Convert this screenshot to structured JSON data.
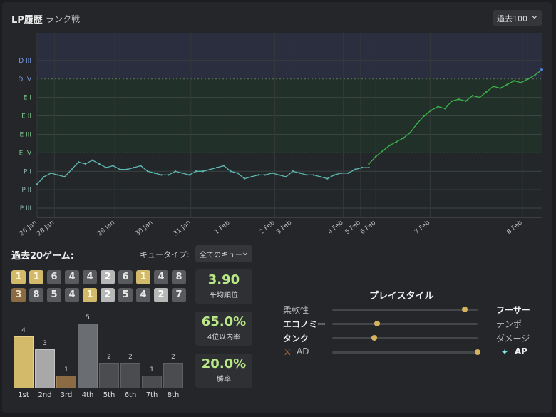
{
  "header": {
    "title": "LP履歴",
    "subtitle": "ランク戦",
    "range_label": "過去100"
  },
  "colors": {
    "line_green": "#3cb34a",
    "line_teal": "#5fb8b2",
    "line_blue": "#4d7fd8",
    "diamond_band": "#2a2e3f",
    "emerald_band": "#22302a",
    "stat_value": "#b8e986"
  },
  "chart_data": {
    "type": "line",
    "y_ticks": [
      "P III",
      "P II",
      "P I",
      "E IV",
      "E III",
      "E II",
      "E I",
      "D IV",
      "D III"
    ],
    "x_ticks": [
      {
        "label": "26 Jan",
        "x": 0
      },
      {
        "label": "28 Jan",
        "x": 5
      },
      {
        "label": "29 Jan",
        "x": 22.5
      },
      {
        "label": "30 Jan",
        "x": 33.5
      },
      {
        "label": "31 Jan",
        "x": 44.5
      },
      {
        "label": "1 Feb",
        "x": 55.8
      },
      {
        "label": "2 Feb",
        "x": 68.8
      },
      {
        "label": "3 Feb",
        "x": 73.7
      },
      {
        "label": "4 Feb",
        "x": 88.6
      },
      {
        "label": "5 Feb",
        "x": 93.6
      },
      {
        "label": "6 Feb",
        "x": 98
      },
      {
        "label": "7 Feb",
        "x": 113.7
      },
      {
        "label": "8 Feb",
        "x": 140.4
      }
    ],
    "ylim": [
      -0.5,
      9.5
    ],
    "xlim": [
      0,
      146
    ],
    "series": [
      {
        "x": [
          0,
          2,
          4,
          6,
          8,
          10,
          12,
          14,
          16,
          18,
          20,
          22,
          24,
          26,
          28,
          30,
          32,
          34,
          36,
          38,
          40,
          42,
          44,
          46,
          48,
          50,
          52,
          54,
          56,
          58,
          60,
          62,
          64,
          66,
          68,
          70,
          72,
          74,
          76,
          78,
          80,
          82,
          84,
          86,
          88,
          90,
          92,
          94,
          96
        ],
        "y": [
          1.3,
          1.7,
          1.9,
          1.8,
          1.7,
          2.1,
          2.5,
          2.4,
          2.6,
          2.4,
          2.2,
          2.3,
          2.1,
          2.1,
          2.2,
          2.3,
          2.0,
          1.9,
          1.8,
          1.8,
          2.0,
          1.9,
          1.8,
          2.0,
          2.0,
          2.1,
          2.2,
          2.3,
          2.0,
          1.9,
          1.6,
          1.7,
          1.8,
          1.8,
          1.9,
          1.8,
          1.7,
          2.0,
          1.9,
          1.8,
          1.8,
          1.7,
          1.6,
          1.8,
          1.9,
          1.9,
          2.1,
          2.2,
          2.2
        ]
      },
      {
        "x": [
          96,
          98,
          100,
          102,
          104,
          106,
          108,
          110,
          112,
          114,
          116,
          118,
          120,
          122,
          124,
          126,
          128,
          130,
          132,
          134,
          136,
          138,
          140,
          142,
          144,
          146
        ],
        "y": [
          2.4,
          2.8,
          3.1,
          3.4,
          3.6,
          3.8,
          4.1,
          4.6,
          5.0,
          5.3,
          5.5,
          5.4,
          5.8,
          5.9,
          5.8,
          6.1,
          6.0,
          6.3,
          6.6,
          6.5,
          6.7,
          6.9,
          6.8,
          7.0,
          7.2,
          7.5
        ]
      }
    ]
  },
  "recent": {
    "title": "過去20ゲーム:",
    "queue_label": "キュータイプ:",
    "queue_value": "全てのキュー",
    "placements": [
      1,
      1,
      6,
      4,
      4,
      2,
      6,
      1,
      4,
      8,
      3,
      8,
      5,
      4,
      1,
      2,
      5,
      4,
      2,
      7
    ],
    "stats": [
      {
        "value": "3.90",
        "label": "平均順位"
      },
      {
        "value": "65.0%",
        "label": "4位以内率"
      },
      {
        "value": "20.0%",
        "label": "勝率"
      }
    ],
    "distribution": {
      "labels": [
        "1st",
        "2nd",
        "3rd",
        "4th",
        "5th",
        "6th",
        "7th",
        "8th"
      ],
      "counts": [
        4,
        3,
        1,
        5,
        2,
        2,
        1,
        2
      ]
    }
  },
  "playstyle": {
    "title": "プレイスタイル",
    "rows": [
      {
        "left": "柔軟性",
        "right": "フーサー",
        "value": 0.91,
        "bold": "right"
      },
      {
        "left": "エコノミー",
        "right": "テンポ",
        "value": 0.31,
        "bold": "left"
      },
      {
        "left": "タンク",
        "right": "ダメージ",
        "value": 0.29,
        "bold": "left"
      },
      {
        "left": "AD",
        "right": "AP",
        "value": 1.0,
        "bold": "right"
      }
    ]
  }
}
